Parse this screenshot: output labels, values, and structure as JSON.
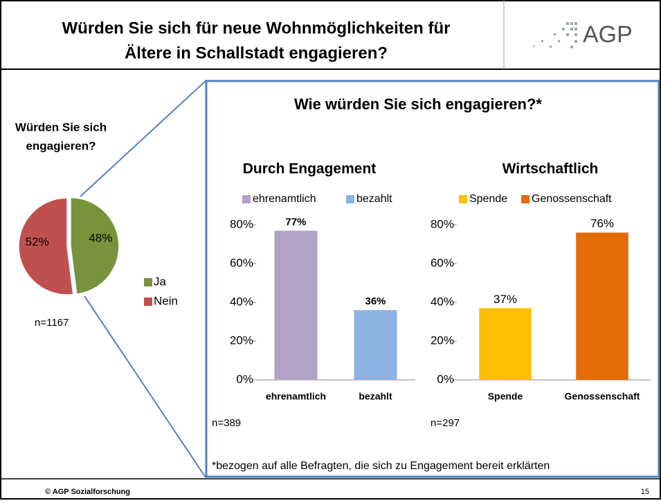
{
  "header": {
    "title_lines": [
      "Würden Sie sich für neue Wohnmöglichkeiten für",
      "Ältere in Schallstadt engagieren?"
    ],
    "logo": "AGP"
  },
  "panel": {
    "title": "Wie würden Sie sich engagieren?*",
    "footnote": "*bezogen auf alle Befragten, die sich zu Engagement bereit erklärten"
  },
  "footer": {
    "left": "© AGP Sozialforschung",
    "page": "15"
  },
  "chart_data": [
    {
      "type": "pie",
      "title_lines": [
        "Würden Sie sich",
        "engagieren?"
      ],
      "categories": [
        "Ja",
        "Nein"
      ],
      "values": [
        48,
        52
      ],
      "value_labels": [
        "48%",
        "52%"
      ],
      "colors": [
        "#77933c",
        "#c0504d"
      ],
      "note": "n=1167",
      "legend": "right"
    },
    {
      "type": "bar",
      "title": "Durch Engagement",
      "categories": [
        "ehrenamtlich",
        "bezahlt"
      ],
      "values": [
        77,
        36
      ],
      "value_labels": [
        "77%",
        "36%"
      ],
      "colors": [
        "#b3a2c7",
        "#8db3e2"
      ],
      "ylim": [
        0,
        80
      ],
      "yticks": [
        {
          "value": 0,
          "label": "0%"
        },
        {
          "value": 20,
          "label": "20%"
        },
        {
          "value": 40,
          "label": "40%"
        },
        {
          "value": 60,
          "label": "60%"
        },
        {
          "value": 80,
          "label": "80%"
        }
      ],
      "note": "n=389",
      "legend": "top"
    },
    {
      "type": "bar",
      "title": "Wirtschaftlich",
      "categories": [
        "Spende",
        "Genossenschaft"
      ],
      "values": [
        37,
        76
      ],
      "value_labels": [
        "37%",
        "76%"
      ],
      "colors": [
        "#ffc000",
        "#e36c09"
      ],
      "ylim": [
        0,
        80
      ],
      "yticks": [
        {
          "value": 0,
          "label": "0%"
        },
        {
          "value": 20,
          "label": "20%"
        },
        {
          "value": 40,
          "label": "40%"
        },
        {
          "value": 60,
          "label": "60%"
        },
        {
          "value": 80,
          "label": "80%"
        }
      ],
      "note": "n=297",
      "legend": "top"
    }
  ]
}
